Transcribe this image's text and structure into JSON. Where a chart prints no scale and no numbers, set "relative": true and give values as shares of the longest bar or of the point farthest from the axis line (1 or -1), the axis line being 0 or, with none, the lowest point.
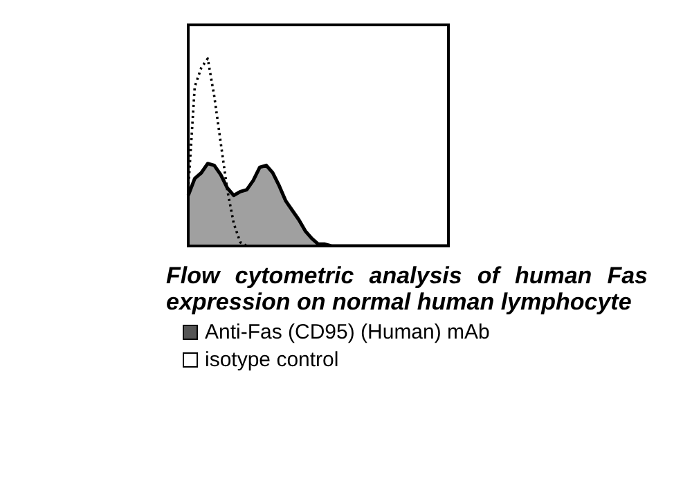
{
  "chart_data": {
    "type": "area",
    "relative": true,
    "title": "Flow cytometric analysis of human Fas expression on normal human lymphocyte",
    "legend": "bottom",
    "categories": [
      null,
      null,
      null,
      null,
      null,
      null,
      null,
      null,
      null,
      null,
      null,
      null,
      null,
      null,
      null,
      null,
      null,
      null,
      null,
      null,
      null,
      null,
      null,
      null,
      null,
      null,
      null,
      null,
      null,
      null,
      null,
      null,
      null,
      null,
      null,
      null,
      null,
      null,
      null,
      null,
      null
    ],
    "series": [
      {
        "name": "Anti-Fas (CD95) (Human) mAb",
        "type": "area",
        "color": "#a0a0a0",
        "values": [
          0.27,
          0.36,
          0.39,
          0.44,
          0.43,
          0.38,
          0.31,
          0.27,
          0.29,
          0.3,
          0.35,
          0.42,
          0.43,
          0.39,
          0.32,
          0.24,
          0.19,
          0.14,
          0.08,
          0.04,
          0.01,
          0.01,
          0,
          0,
          0,
          0,
          0,
          0,
          0,
          0,
          0,
          0,
          0,
          0,
          0,
          0,
          0,
          0,
          0,
          0,
          0
        ]
      },
      {
        "name": "isotype control",
        "type": "line",
        "line_style": "dotted",
        "color": "#000000",
        "values": [
          0.3,
          0.85,
          0.95,
          1,
          0.8,
          0.55,
          0.3,
          0.12,
          0.02,
          0,
          0,
          0,
          0,
          0,
          0,
          0,
          0,
          0,
          0,
          0,
          0,
          0,
          0,
          0,
          0,
          0,
          0,
          0,
          0,
          0,
          0,
          0,
          0,
          0,
          0,
          0,
          0,
          0,
          0,
          0,
          0
        ]
      }
    ]
  }
}
